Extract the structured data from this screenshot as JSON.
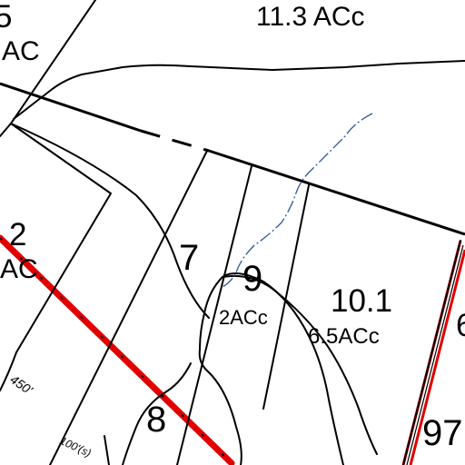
{
  "map": {
    "labels": {
      "parcel_5_number": "5",
      "parcel_5_acreage": "AC",
      "parcel_11_3_acreage": "11.3 ACc",
      "parcel_2_number": "2",
      "parcel_2_acreage": "AC",
      "parcel_7_number": "7",
      "parcel_9_number": "9",
      "parcel_9_acreage": "2ACc",
      "parcel_10_1_number": "10.1",
      "parcel_10_1_acreage": "6.5ACc",
      "parcel_8_number": "8",
      "parcel_97_number": "97",
      "parcel_6_partial": "6",
      "dimension_450": "450'",
      "dimension_100": "100'(s)"
    },
    "colors": {
      "lot_line": "#000000",
      "boundary_red": "#e00000",
      "stream": "#2b5797",
      "background": "#ffffff"
    }
  }
}
